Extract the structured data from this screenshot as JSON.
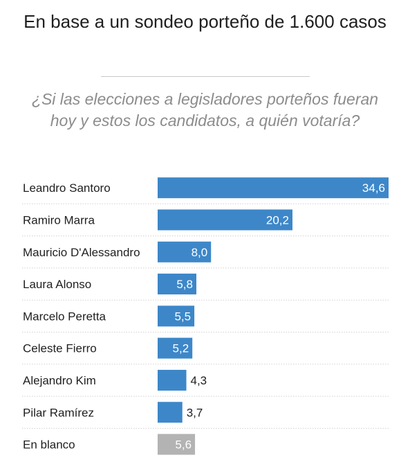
{
  "header": {
    "title": "En base a un sondeo porteño de 1.600 casos",
    "subtitle": "¿Si las elecciones a legisladores porteños fueran hoy y estos los candidatos, a quién votaría?"
  },
  "colors": {
    "bar": "#3d87c9",
    "bar_blank": "#b3b3b3",
    "divider": "#d0d0d0"
  },
  "chart_data": {
    "type": "bar",
    "orientation": "horizontal",
    "title": "En base a un sondeo porteño de 1.600 casos",
    "subtitle": "¿Si las elecciones a legisladores porteños fueran hoy y estos los candidatos, a quién votaría?",
    "categories": [
      "Leandro Santoro",
      "Ramiro Marra",
      "Mauricio D'Alessandro",
      "Laura Alonso",
      "Marcelo Peretta",
      "Celeste Fierro",
      "Alejandro Kim",
      "Pilar Ramírez",
      "En blanco"
    ],
    "values": [
      34.6,
      20.2,
      8.0,
      5.8,
      5.5,
      5.2,
      4.3,
      3.7,
      5.6
    ],
    "labels": [
      "34,6",
      "20,2",
      "8,0",
      "5,8",
      "5,5",
      "5,2",
      "4,3",
      "3,7",
      "5,6"
    ],
    "bar_colors": [
      "#3d87c9",
      "#3d87c9",
      "#3d87c9",
      "#3d87c9",
      "#3d87c9",
      "#3d87c9",
      "#3d87c9",
      "#3d87c9",
      "#b3b3b3"
    ],
    "xlim": [
      0,
      34.6
    ],
    "grid": false,
    "legend": "none"
  }
}
